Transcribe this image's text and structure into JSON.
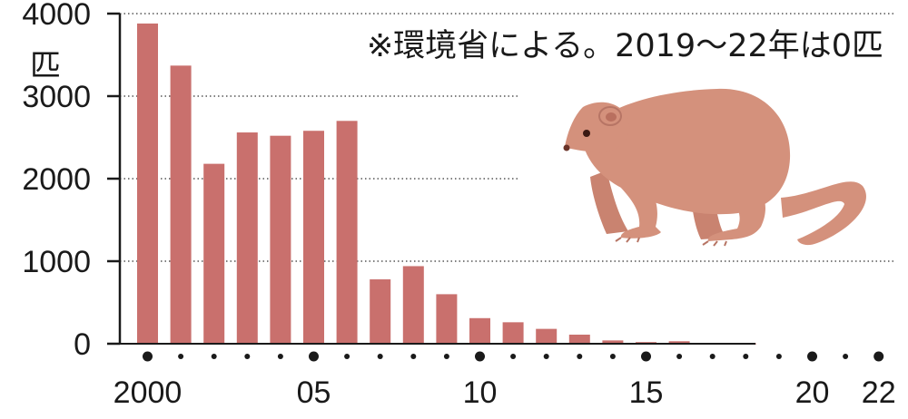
{
  "chart_data": {
    "type": "bar",
    "note": "※環境省による。2019〜22年は0匹",
    "y_unit": "匹",
    "ylim": [
      0,
      4000
    ],
    "y_ticks": [
      "0",
      "1000",
      "2000",
      "3000",
      "4000"
    ],
    "grid": "dotted horizontal",
    "bar_color": "#c9706d",
    "x": [
      2000,
      2001,
      2002,
      2003,
      2004,
      2005,
      2006,
      2007,
      2008,
      2009,
      2010,
      2011,
      2012,
      2013,
      2014,
      2015,
      2016,
      2017,
      2018,
      2019,
      2020,
      2021,
      2022
    ],
    "values": [
      3880,
      3370,
      2180,
      2560,
      2520,
      2580,
      2700,
      780,
      940,
      600,
      310,
      260,
      180,
      110,
      40,
      20,
      30,
      10,
      5,
      0,
      0,
      0,
      0
    ],
    "x_tick_labels": [
      {
        "year": 2000,
        "label": "2000"
      },
      {
        "year": 2005,
        "label": "05"
      },
      {
        "year": 2010,
        "label": "10"
      },
      {
        "year": 2015,
        "label": "15"
      },
      {
        "year": 2020,
        "label": "20"
      },
      {
        "year": 2022,
        "label": "22"
      }
    ],
    "major_dot_years": [
      2000,
      2005,
      2010,
      2015,
      2020,
      2022
    ]
  },
  "illustration": {
    "subject": "mongoose-icon",
    "color": "#d4917c"
  }
}
